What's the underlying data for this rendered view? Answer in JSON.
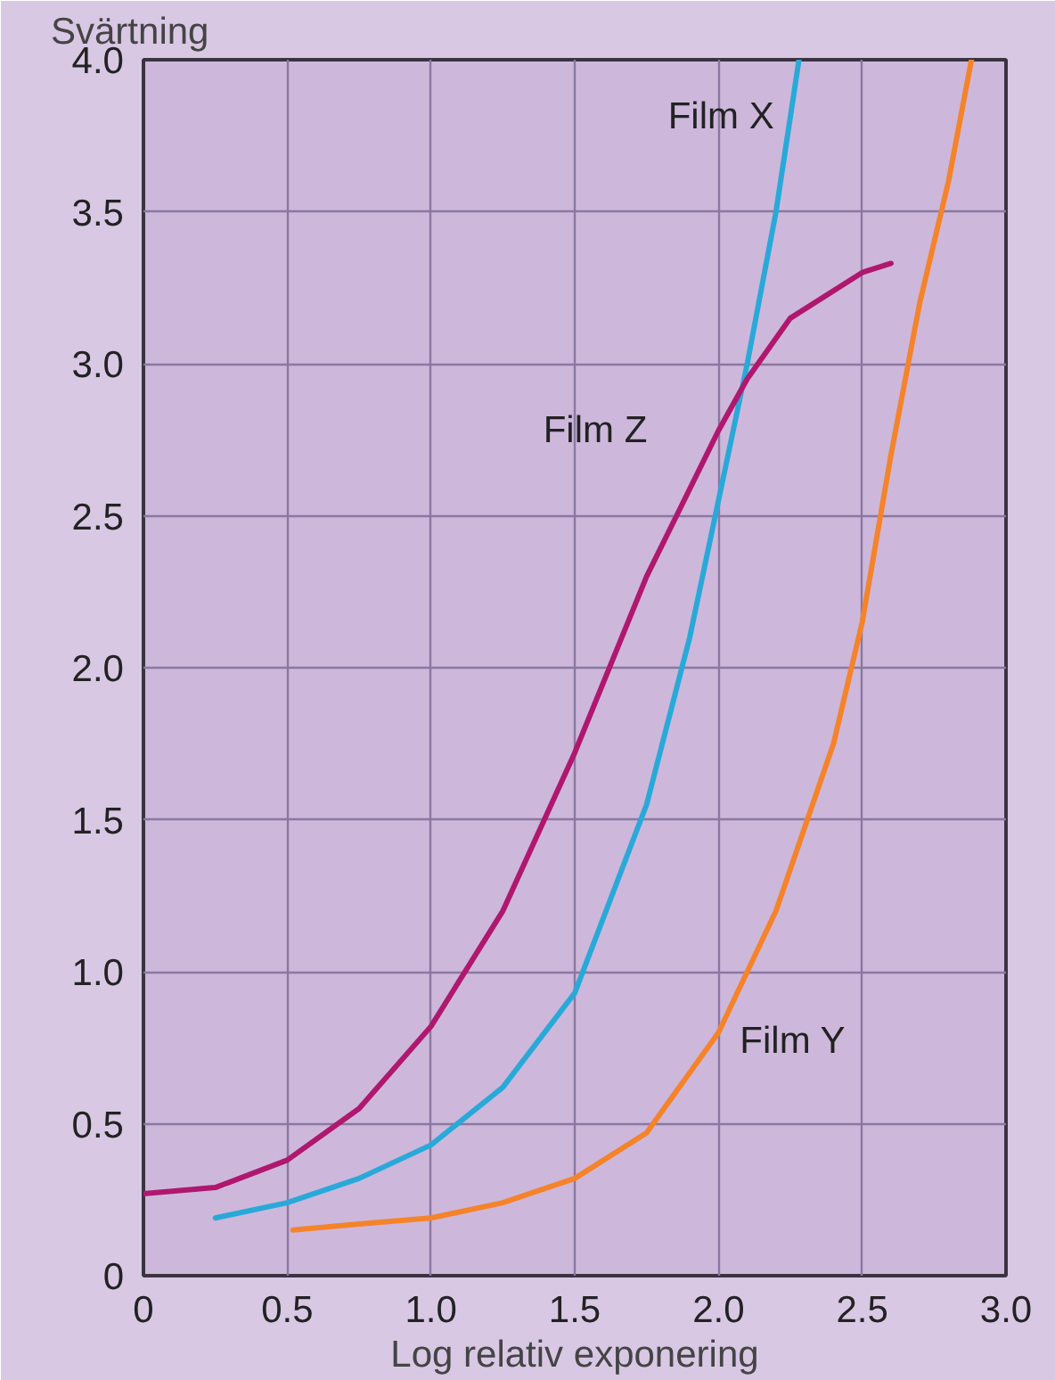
{
  "chart_data": {
    "type": "line",
    "ylabel": "Svärtning",
    "xlabel": "Log relativ exponering",
    "xlim": [
      0,
      3.0
    ],
    "ylim": [
      0,
      4.0
    ],
    "xticks": [
      0,
      {
        "value": 0.5,
        "label": "0.5"
      },
      {
        "value": 1,
        "label": "1.0"
      },
      {
        "value": 1.5,
        "label": "1.5"
      },
      {
        "value": 2,
        "label": "2.0"
      },
      {
        "value": 2.5,
        "label": "2.5"
      },
      {
        "value": 3,
        "label": "3.0"
      }
    ],
    "yticks": [
      0,
      {
        "value": 0.5,
        "label": "0.5"
      },
      {
        "value": 1,
        "label": "1.0"
      },
      {
        "value": 1.5,
        "label": "1.5"
      },
      {
        "value": 2,
        "label": "2.0"
      },
      {
        "value": 2.5,
        "label": "2.5"
      },
      {
        "value": 3,
        "label": "3.0"
      },
      {
        "value": 3.5,
        "label": "3.5"
      },
      {
        "value": 4,
        "label": "4.0"
      }
    ],
    "grid": true,
    "marker": "none",
    "line_style": "solid",
    "series": [
      {
        "name": "Film X",
        "color": "#29a9d8",
        "x": [
          0.25,
          0.5,
          0.75,
          1.0,
          1.25,
          1.5,
          1.75,
          1.9,
          2.0,
          2.1,
          2.2,
          2.28
        ],
        "values": [
          0.19,
          0.24,
          0.32,
          0.43,
          0.62,
          0.93,
          1.55,
          2.1,
          2.55,
          3.0,
          3.5,
          4.0
        ]
      },
      {
        "name": "Film Z",
        "color": "#b0176e",
        "x": [
          0,
          0.25,
          0.5,
          0.75,
          1.0,
          1.25,
          1.5,
          1.75,
          2.0,
          2.1,
          2.25,
          2.5,
          2.6
        ],
        "values": [
          0.27,
          0.29,
          0.38,
          0.55,
          0.82,
          1.2,
          1.72,
          2.3,
          2.78,
          2.95,
          3.15,
          3.3,
          3.33
        ]
      },
      {
        "name": "Film Y",
        "color": "#f5832a",
        "x": [
          0.52,
          0.75,
          1.0,
          1.25,
          1.5,
          1.75,
          2.0,
          2.2,
          2.4,
          2.5,
          2.6,
          2.7,
          2.8,
          2.88
        ],
        "values": [
          0.15,
          0.17,
          0.19,
          0.24,
          0.32,
          0.47,
          0.8,
          1.2,
          1.75,
          2.15,
          2.7,
          3.2,
          3.6,
          4.0
        ]
      }
    ]
  }
}
